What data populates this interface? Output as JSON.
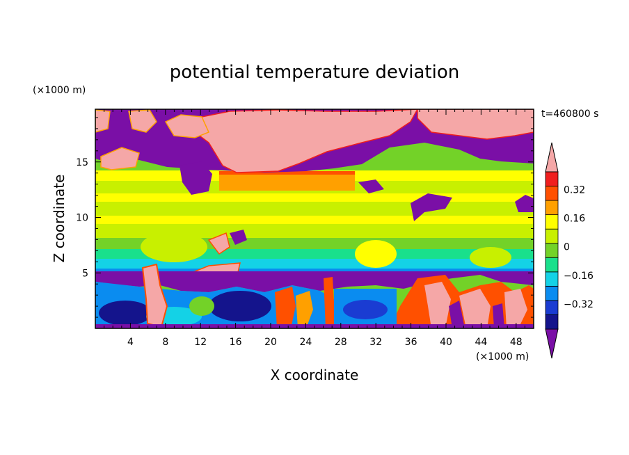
{
  "chart_data": {
    "type": "heatmap",
    "title": "potential temperature deviation",
    "xlabel": "X coordinate",
    "ylabel": "Z coordinate",
    "x_unit": "(×1000 m)",
    "y_unit": "(×1000 m)",
    "time_label": "t=460800 s",
    "xlim": [
      0,
      50
    ],
    "ylim": [
      0,
      19.75
    ],
    "x_ticks": [
      4,
      8,
      12,
      16,
      20,
      24,
      28,
      32,
      36,
      40,
      44,
      48
    ],
    "y_ticks": [
      5,
      10,
      15
    ],
    "colorbar": {
      "levels": [
        -0.4,
        -0.32,
        -0.24,
        -0.16,
        -0.08,
        0,
        0.08,
        0.16,
        0.24,
        0.32,
        0.4
      ],
      "colors": [
        "#7a0fa6",
        "#14148c",
        "#1a3cd2",
        "#0a8cf0",
        "#14d2e6",
        "#19e08c",
        "#73d228",
        "#c8f000",
        "#ffff00",
        "#ffa000",
        "#ff5000",
        "#f01e1e",
        "#f5a7a7"
      ],
      "labels": [
        "0.32",
        "0.16",
        "0",
        "−0.16",
        "−0.32"
      ],
      "label_values": [
        0.32,
        0.16,
        0,
        -0.16,
        -0.32
      ],
      "extend": "both"
    }
  }
}
